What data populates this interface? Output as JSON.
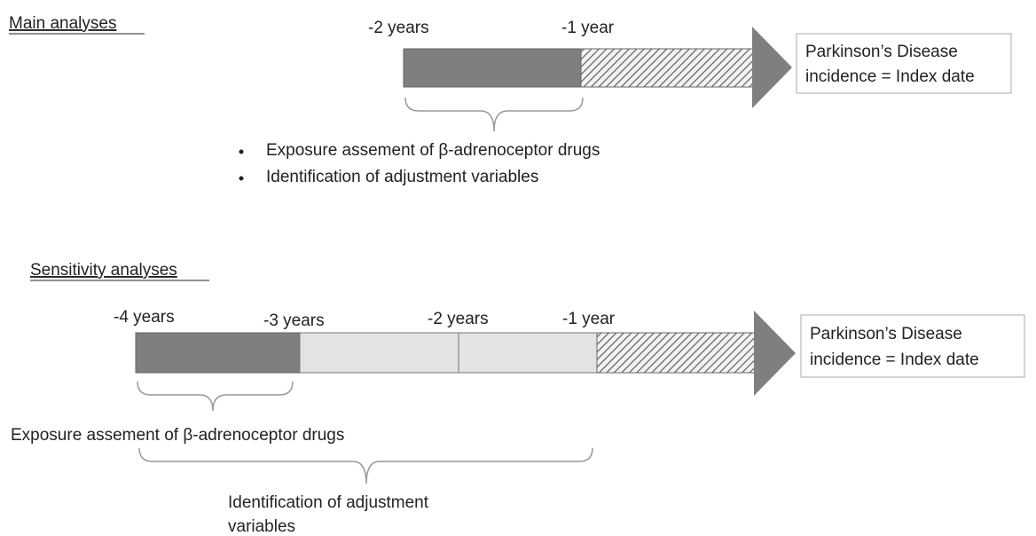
{
  "main": {
    "heading": "Main analyses",
    "labels": [
      "-2 years",
      "-1 year"
    ],
    "outcome": [
      "Parkinson’s Disease",
      "incidence = Index date"
    ],
    "bullets": [
      "Exposure assement of β-adrenoceptor drugs",
      "Identification of adjustment variables"
    ]
  },
  "sensitivity": {
    "heading": "Sensitivity analyses",
    "labels": [
      "-4 years",
      "-3 years",
      "-2 years",
      "-1 year"
    ],
    "outcome": [
      "Parkinson’s Disease",
      "incidence = Index date"
    ],
    "exposure": "Exposure assement of β-adrenoceptor drugs",
    "adjustment": [
      "Identification of adjustment",
      "variables"
    ]
  }
}
